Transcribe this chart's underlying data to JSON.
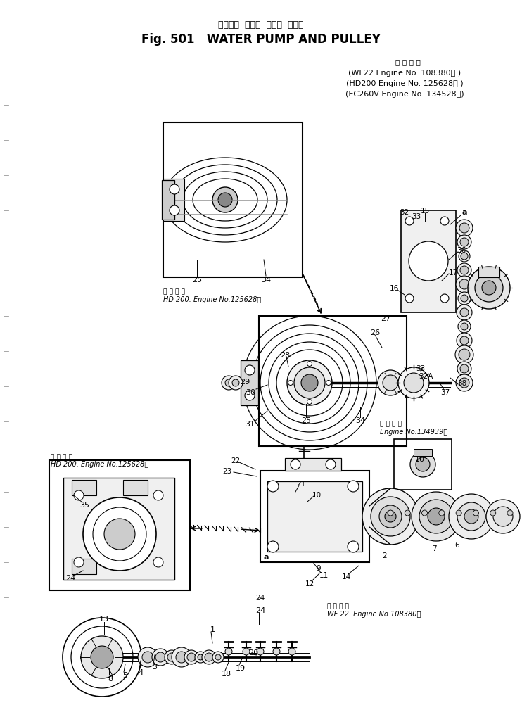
{
  "bg_color": "#ffffff",
  "line_color": "#000000",
  "title_japanese": "ウォータ  ポンプ  および  プーリ",
  "title_english": "Fig. 501   WATER PUMP AND PULLEY",
  "engine_header": "適 用 号 機",
  "engine_line1": "(WF22 Engine No. 108380～ )",
  "engine_line2": "(HD200 Engine No. 125628～ )",
  "engine_line3": "(EC260V Engine No. 134528～)",
  "note_hd200_inset1": "HD 200. Engine No.125628～",
  "note_hd200_inset2_header": "適 用 号 機",
  "note_hd200_inset2": "HD 200. Engine No.125628～",
  "note_engine3_header": "適 用 号 機",
  "note_engine3": "Engine No.134939～",
  "note_wf22_header": "適 用 号 機",
  "note_wf22": "WF 22. Engine No.108380～"
}
